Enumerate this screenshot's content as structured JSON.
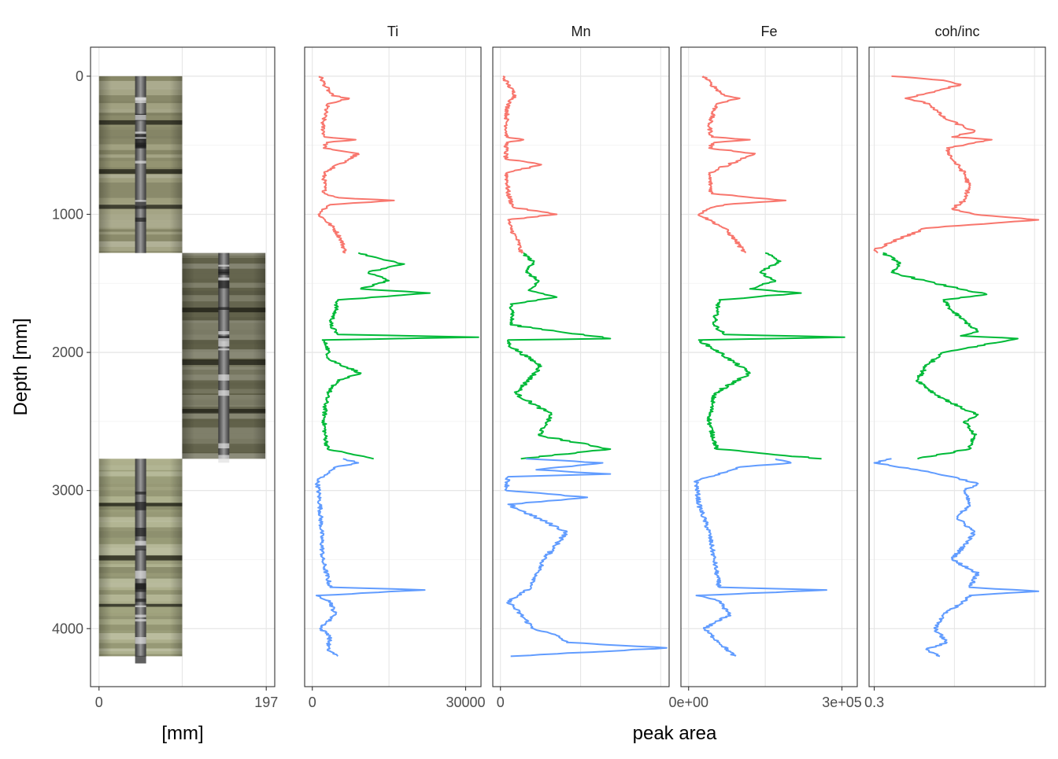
{
  "chart_data": {
    "type": "line",
    "y_label": "Depth [mm]",
    "y_range_mm": [
      4420,
      -210
    ],
    "y_reversed": true,
    "y_ticks": [
      0,
      1000,
      2000,
      3000,
      4000
    ],
    "y_tick_labels": [
      "0",
      "1000",
      "2000",
      "3000",
      "4000"
    ],
    "grid": true,
    "theme_colors": {
      "series_1": "#F8766D",
      "series_2": "#00BA38",
      "series_3": "#619CFF",
      "grid_major": "#e6e6e6",
      "grid_minor": "#f2f2f2",
      "frame": "#333333"
    },
    "image_panel": {
      "x_label": "[mm]",
      "x_tick_labels": [
        "0",
        "197"
      ],
      "x_range": [
        -10,
        207
      ],
      "core_sections": [
        {
          "x_range": [
            0,
            98
          ],
          "depth_top": 0,
          "depth_bottom": 1280,
          "tint": "#9a9a78"
        },
        {
          "x_range": [
            98,
            196
          ],
          "depth_top": 1280,
          "depth_bottom": 2770,
          "tint": "#6a6a52"
        },
        {
          "x_range": [
            0,
            98
          ],
          "depth_top": 2770,
          "depth_bottom": 4200,
          "tint": "#a8ab85"
        }
      ]
    },
    "shared_x_label": "peak area",
    "panels": [
      {
        "title": "Ti",
        "x_range": [
          -1500,
          33000
        ],
        "x_ticks": [
          0,
          30000
        ],
        "x_tick_labels": [
          "0",
          "30000"
        ],
        "series": [
          {
            "depth": [
              0,
              60,
              140,
              160,
              200,
              350,
              440,
              460,
              480,
              520,
              560,
              700,
              850,
              880,
              900,
              930,
              960,
              1000,
              1040,
              1100,
              1180,
              1280
            ],
            "values": [
              1500,
              2400,
              3800,
              7200,
              3000,
              2000,
              2400,
              8500,
              2800,
              2200,
              9000,
              2300,
              2400,
              5200,
              16000,
              3500,
              2500,
              1200,
              2500,
              4200,
              5600,
              6500
            ]
          },
          {
            "depth": [
              1280,
              1330,
              1360,
              1420,
              1480,
              1540,
              1570,
              1620,
              1700,
              1800,
              1870,
              1890,
              1910,
              1960,
              2050,
              2150,
              2200,
              2300,
              2400,
              2500,
              2600,
              2700,
              2770
            ],
            "values": [
              9000,
              14000,
              18000,
              11000,
              15000,
              9500,
              23000,
              5000,
              4500,
              3500,
              5000,
              32500,
              2000,
              3000,
              3200,
              9500,
              5000,
              3000,
              2500,
              2300,
              2500,
              3000,
              12000
            ]
          },
          {
            "depth": [
              2770,
              2800,
              2830,
              2930,
              3100,
              3300,
              3500,
              3700,
              3720,
              3760,
              3800,
              3900,
              4000,
              4050,
              4150,
              4200
            ],
            "values": [
              6000,
              9000,
              4500,
              1000,
              1500,
              1800,
              2000,
              3500,
              22000,
              800,
              3500,
              4500,
              1500,
              3500,
              3000,
              5000
            ]
          }
        ]
      },
      {
        "title": "Mn",
        "x_range": [
          -1500,
          33000
        ],
        "x_ticks": [
          0
        ],
        "x_tick_labels": [
          "0"
        ],
        "series": [
          {
            "depth": [
              0,
              60,
              140,
              200,
              300,
              440,
              460,
              480,
              600,
              640,
              700,
              850,
              950,
              1000,
              1040,
              1100,
              1200,
              1280
            ],
            "values": [
              500,
              1500,
              3000,
              1500,
              1200,
              1200,
              4500,
              1200,
              1000,
              8000,
              1200,
              1500,
              2500,
              11000,
              1500,
              2000,
              3500,
              4000
            ]
          },
          {
            "depth": [
              1280,
              1350,
              1420,
              1480,
              1550,
              1600,
              1650,
              1700,
              1800,
              1900,
              1910,
              1950,
              2100,
              2300,
              2450,
              2600,
              2700,
              2770
            ],
            "values": [
              4500,
              6500,
              5000,
              7500,
              5500,
              11000,
              2000,
              2500,
              2000,
              21500,
              1500,
              1800,
              8000,
              3000,
              10000,
              7500,
              21500,
              4000
            ]
          },
          {
            "depth": [
              2770,
              2800,
              2850,
              2880,
              2900,
              3000,
              3050,
              3100,
              3300,
              3500,
              3700,
              3800,
              4000,
              4050,
              4100,
              4140,
              4200
            ],
            "values": [
              5000,
              20000,
              7000,
              21500,
              1500,
              1200,
              17000,
              1500,
              13000,
              8500,
              6000,
              1500,
              6500,
              11000,
              13000,
              32500,
              2000
            ]
          }
        ]
      },
      {
        "title": "Fe",
        "x_range": [
          -15000,
          330000
        ],
        "x_ticks": [
          0,
          300000
        ],
        "x_tick_labels": [
          "0e+00",
          "3e+05"
        ],
        "series": [
          {
            "depth": [
              0,
              60,
              140,
              160,
              200,
              350,
              440,
              460,
              480,
              520,
              560,
              700,
              850,
              900,
              930,
              960,
              1000,
              1040,
              1100,
              1180,
              1280
            ],
            "values": [
              30000,
              45000,
              70000,
              100000,
              55000,
              40000,
              45000,
              120000,
              50000,
              40000,
              130000,
              40000,
              45000,
              190000,
              70000,
              40000,
              20000,
              40000,
              70000,
              90000,
              110000
            ]
          },
          {
            "depth": [
              1280,
              1340,
              1420,
              1480,
              1540,
              1570,
              1620,
              1700,
              1800,
              1870,
              1890,
              1910,
              2000,
              2150,
              2300,
              2500,
              2700,
              2770
            ],
            "values": [
              150000,
              180000,
              140000,
              170000,
              120000,
              220000,
              60000,
              55000,
              50000,
              70000,
              305000,
              20000,
              60000,
              120000,
              50000,
              40000,
              55000,
              260000
            ]
          },
          {
            "depth": [
              2770,
              2800,
              2830,
              2930,
              3100,
              3300,
              3500,
              3700,
              3720,
              3760,
              3800,
              3900,
              4000,
              4100,
              4200
            ],
            "values": [
              170000,
              200000,
              100000,
              15000,
              20000,
              40000,
              50000,
              60000,
              270000,
              15000,
              60000,
              80000,
              30000,
              60000,
              90000
            ]
          }
        ]
      },
      {
        "title": "coh/inc",
        "x_range": [
          0.27,
          1.29
        ],
        "x_ticks": [
          0.3
        ],
        "x_tick_labels": [
          "0.3"
        ],
        "series": [
          {
            "depth": [
              0,
              30,
              60,
              120,
              160,
              200,
              300,
              400,
              440,
              460,
              520,
              600,
              700,
              800,
              900,
              960,
              1000,
              1040,
              1100,
              1200,
              1260,
              1280
            ],
            "values": [
              0.4,
              0.7,
              0.8,
              0.62,
              0.48,
              0.62,
              0.7,
              0.88,
              0.75,
              0.98,
              0.72,
              0.75,
              0.82,
              0.85,
              0.82,
              0.75,
              0.88,
              1.25,
              0.6,
              0.4,
              0.3,
              0.32
            ]
          },
          {
            "depth": [
              1280,
              1350,
              1420,
              1500,
              1580,
              1620,
              1700,
              1800,
              1850,
              1880,
              1900,
              2000,
              2100,
              2200,
              2300,
              2400,
              2450,
              2500,
              2600,
              2700,
              2770
            ],
            "values": [
              0.35,
              0.45,
              0.4,
              0.65,
              0.95,
              0.7,
              0.75,
              0.85,
              0.9,
              0.8,
              1.13,
              0.7,
              0.6,
              0.55,
              0.65,
              0.8,
              0.9,
              0.82,
              0.88,
              0.85,
              0.55
            ]
          },
          {
            "depth": [
              2770,
              2800,
              2850,
              2900,
              2950,
              3000,
              3100,
              3200,
              3300,
              3400,
              3500,
              3600,
              3700,
              3730,
              3760,
              3800,
              3900,
              4000,
              4100,
              4150,
              4200
            ],
            "values": [
              0.4,
              0.3,
              0.55,
              0.75,
              0.9,
              0.82,
              0.85,
              0.78,
              0.88,
              0.82,
              0.75,
              0.9,
              0.85,
              1.25,
              0.85,
              0.82,
              0.7,
              0.65,
              0.72,
              0.6,
              0.68
            ]
          }
        ]
      }
    ]
  }
}
